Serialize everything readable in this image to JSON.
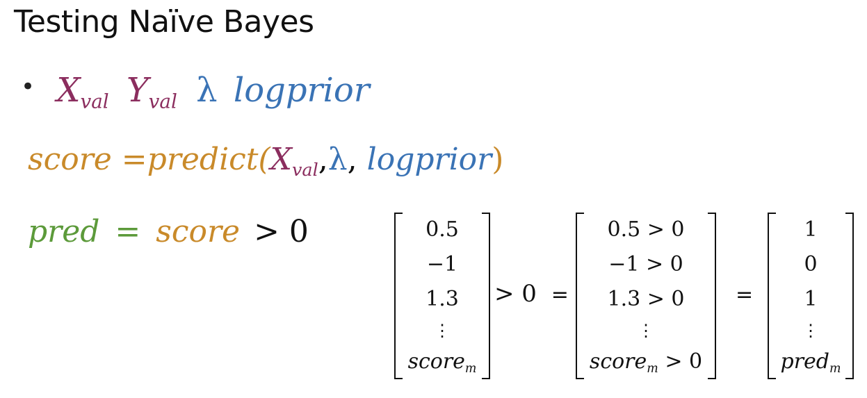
{
  "title": "Testing Naïve Bayes",
  "row1": {
    "x": "X",
    "x_sub": "val",
    "y": "Y",
    "y_sub": "val",
    "lambda": "λ",
    "logprior": "logprior"
  },
  "row2": {
    "score": "score",
    "eq": "=",
    "predict": "predict(",
    "x": "X",
    "x_sub": "val",
    "comma1": ",",
    "lambda": "λ",
    "comma2": ",",
    "logprior": "logprior",
    "close": ")"
  },
  "row3": {
    "pred": "pred",
    "eq": "=",
    "score": "score",
    "gt": "> 0"
  },
  "matrix1": {
    "rows": [
      "0.5",
      "−1",
      "1.3",
      "⋮"
    ],
    "last": "score",
    "last_sub": "m"
  },
  "op1": {
    "gt": "> 0",
    "eq": "="
  },
  "matrix2": {
    "rows": [
      "0.5 > 0",
      "−1 > 0",
      "1.3 > 0",
      "⋮"
    ],
    "last": "score",
    "last_sub": "m",
    "last_tail": " > 0"
  },
  "op2": {
    "eq": "="
  },
  "matrix3": {
    "rows": [
      "1",
      "0",
      "1",
      "⋮"
    ],
    "last": "pred",
    "last_sub": "m"
  },
  "colors": {
    "purple": "#8b2d5e",
    "blue": "#3a73b5",
    "orange": "#c98a2a",
    "green": "#5c9a3a",
    "black": "#111111"
  }
}
